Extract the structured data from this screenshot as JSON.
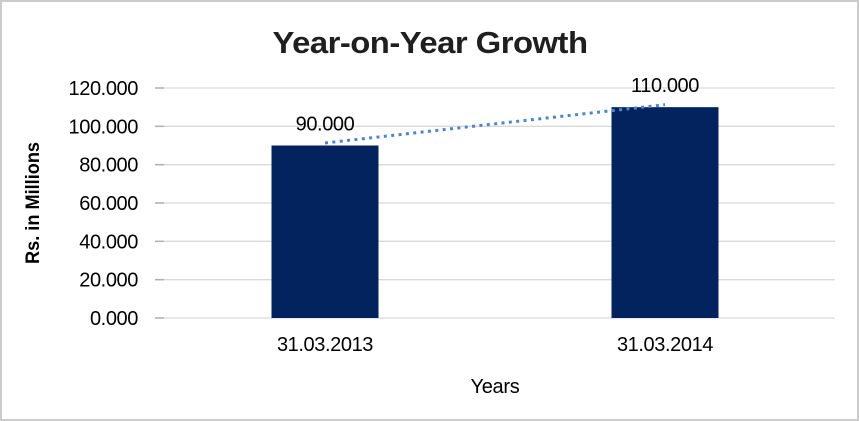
{
  "frame": {
    "background": "#ffffff",
    "border_color": "#cbcbcb"
  },
  "chart_data": {
    "type": "bar",
    "title": "Year-on-Year Growth",
    "xlabel": "Years",
    "ylabel": "Rs. in Millions",
    "categories": [
      "31.03.2013",
      "31.03.2014"
    ],
    "series": [
      {
        "values": [
          90,
          110
        ]
      }
    ],
    "data_labels": [
      "90.000",
      "110.000"
    ],
    "ylim": [
      0,
      120
    ],
    "yticks": {
      "values": [
        0,
        20,
        40,
        60,
        80,
        100,
        120
      ],
      "labels": [
        "0.000",
        "20.000",
        "40.000",
        "60.000",
        "80.000",
        "100.000",
        "120.000"
      ]
    },
    "grid": true,
    "legend": "none",
    "bar_color": "#03235f",
    "gridline_color": "#d9d9d9",
    "tick_color": "#b0b0b0",
    "trendline": {
      "type": "linear",
      "style": "dotted",
      "color": "#4e86c5",
      "points": [
        90,
        110
      ]
    }
  }
}
